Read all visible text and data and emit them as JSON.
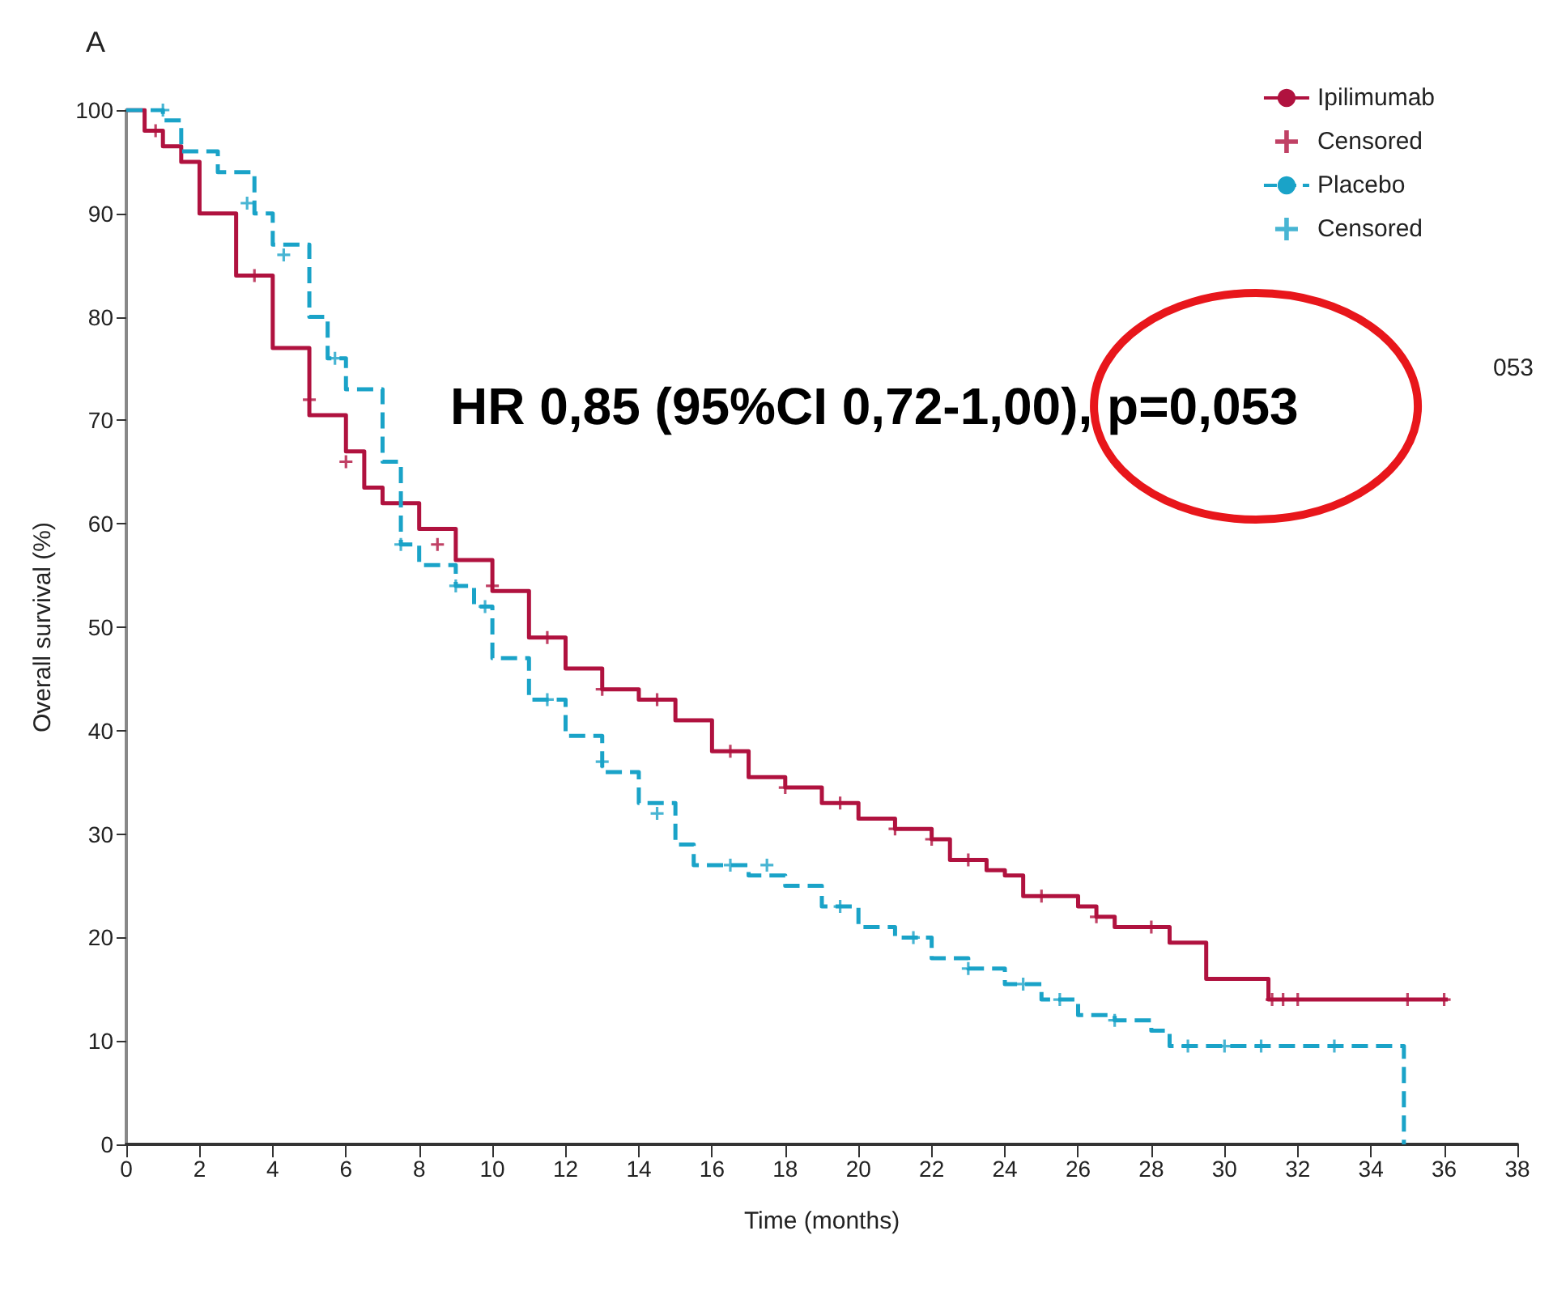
{
  "chart_data": {
    "type": "step",
    "title": "A",
    "xlabel": "Time (months)",
    "ylabel": "Overall survival (%)",
    "xlim": [
      0,
      38
    ],
    "xticks": [
      0,
      2,
      4,
      6,
      8,
      10,
      12,
      14,
      16,
      18,
      20,
      22,
      24,
      26,
      28,
      30,
      32,
      34,
      36,
      38
    ],
    "ylim": [
      0,
      100
    ],
    "yticks": [
      0,
      10,
      20,
      30,
      40,
      50,
      60,
      70,
      80,
      90,
      100
    ],
    "grid": false,
    "legend": "top right",
    "annotations": [
      "HR 0,85 (95%CI 0,72-1,00), p=0,053",
      "053"
    ],
    "series": [
      {
        "name": "Ipilimumab",
        "color": "#b0123f",
        "line_style": "solid",
        "x": [
          0,
          0.5,
          1,
          1.5,
          2,
          3,
          4,
          5,
          6,
          6.5,
          7,
          8,
          9,
          10,
          11,
          12,
          13,
          14,
          15,
          16,
          17,
          18,
          19,
          20,
          21,
          22,
          22.5,
          23.5,
          24,
          24.5,
          26,
          26.5,
          27,
          28.5,
          29.5,
          31.2,
          36.1
        ],
        "values": [
          100,
          98,
          96.5,
          95,
          90,
          84,
          77,
          70.5,
          67,
          63.5,
          62,
          59.5,
          56.5,
          53.5,
          49,
          46,
          44,
          43,
          41,
          38,
          35.5,
          34.5,
          33,
          31.5,
          30.5,
          29.5,
          27.5,
          26.5,
          26,
          24,
          23,
          22,
          21,
          19.5,
          16,
          14,
          14
        ]
      },
      {
        "name": "Censored",
        "type": "scatter",
        "marker": "cross",
        "color": "#b0123f",
        "x": [
          0.8,
          3.5,
          5,
          6,
          8.5,
          10,
          11.5,
          13,
          14.5,
          16.5,
          18,
          19.5,
          21,
          22,
          23,
          25,
          26.5,
          28,
          31.3,
          31.6,
          32,
          35,
          36
        ],
        "values": [
          98,
          84,
          72,
          66,
          58,
          54,
          49,
          44,
          43,
          38,
          34.5,
          33,
          30.5,
          29.5,
          27.5,
          24,
          22,
          21,
          14,
          14,
          14,
          14,
          14
        ]
      },
      {
        "name": "Placebo",
        "color": "#1aa3c8",
        "line_style": "dashed",
        "x": [
          0,
          1,
          1.5,
          2.5,
          3.5,
          4,
          5,
          5.5,
          6,
          7,
          7.5,
          8,
          9,
          9.5,
          10,
          11,
          12,
          13,
          14,
          15,
          15.5,
          17,
          18,
          19,
          20,
          21,
          22,
          23,
          24,
          25,
          26,
          27,
          28,
          28.5,
          34.9,
          34.9
        ],
        "values": [
          100,
          99,
          96,
          94,
          90,
          87,
          80,
          76,
          73,
          66,
          58,
          56,
          54,
          52,
          47,
          43,
          39.5,
          36,
          33,
          29,
          27,
          26,
          25,
          23,
          21,
          20,
          18,
          17,
          15.5,
          14,
          12.5,
          12,
          11,
          9.5,
          9.5,
          0
        ]
      },
      {
        "name": "Censored",
        "type": "scatter",
        "marker": "cross",
        "color": "#1aa3c8",
        "x": [
          1,
          3.3,
          4.3,
          5.7,
          7.5,
          9,
          9.8,
          11.5,
          13,
          14.5,
          16.5,
          17.5,
          19.5,
          21.5,
          23,
          24.5,
          25.5,
          27,
          29,
          30,
          31,
          33
        ],
        "values": [
          100,
          91,
          86,
          76,
          58,
          54,
          52,
          43,
          37,
          32,
          27,
          27,
          23,
          20,
          17,
          15.5,
          14,
          12,
          9.5,
          9.5,
          9.5,
          9.5
        ]
      }
    ]
  }
}
